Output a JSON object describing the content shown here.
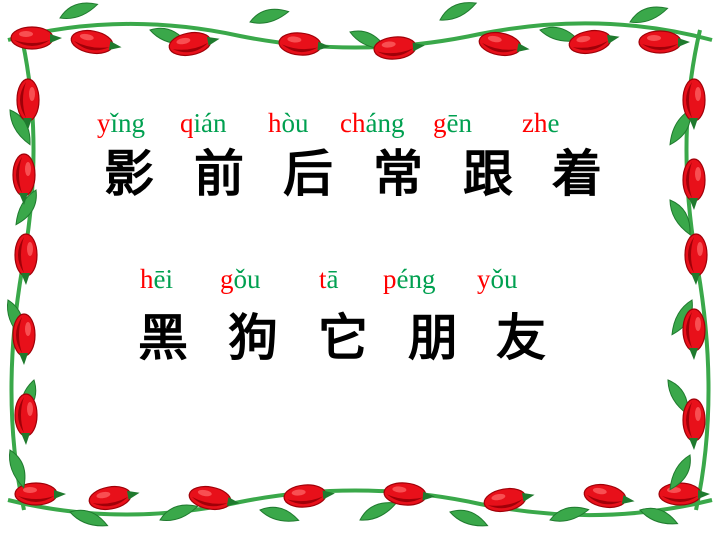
{
  "colors": {
    "initial": "#ff0000",
    "final": "#00a050",
    "hanzi": "#000000",
    "leaf": "#3aa84a",
    "leaf_dark": "#1f7a2e",
    "petal": "#e8101a",
    "petal_dark": "#a00008",
    "background": "#ffffff"
  },
  "rows": [
    {
      "pinyin": [
        {
          "initial": "y",
          "final": "ǐng"
        },
        {
          "initial": "q",
          "final": "ián"
        },
        {
          "initial": "h",
          "final": "òu"
        },
        {
          "initial": "ch",
          "final": "áng"
        },
        {
          "initial": "g",
          "final": "ēn"
        },
        {
          "initial": "zh",
          "final": "e"
        }
      ],
      "hanzi": [
        "影",
        "前",
        "后",
        "常",
        "跟",
        "着"
      ]
    },
    {
      "pinyin": [
        {
          "initial": "h",
          "final": "ēi"
        },
        {
          "initial": "g",
          "final": "ǒu"
        },
        {
          "initial": "t",
          "final": "ā"
        },
        {
          "initial": "p",
          "final": "éng"
        },
        {
          "initial": "y",
          "final": "ǒu"
        }
      ],
      "hanzi": [
        "黑",
        "狗",
        "它",
        "朋",
        "友"
      ]
    }
  ]
}
